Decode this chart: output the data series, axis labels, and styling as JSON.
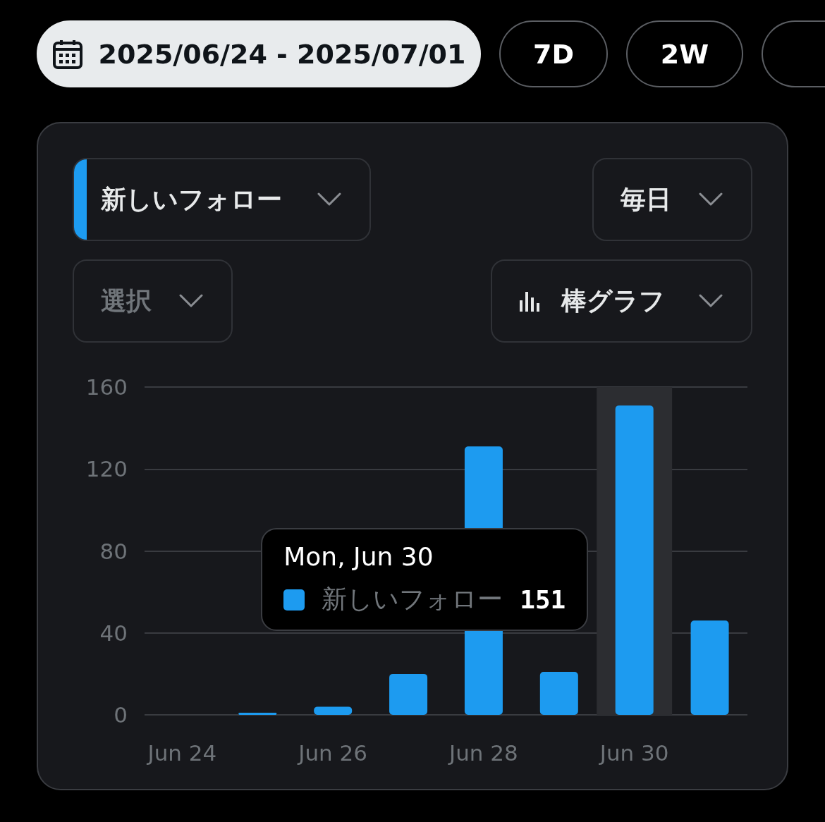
{
  "chart_data": {
    "type": "bar",
    "categories": [
      "Jun 24",
      null,
      "Jun 26",
      null,
      "Jun 28",
      null,
      "Jun 30",
      null
    ],
    "series": [
      {
        "name": "新しいフォロー",
        "color": "#1d9bf0",
        "values": [
          0,
          1,
          4,
          20,
          131,
          21,
          151,
          46
        ]
      }
    ],
    "ylim": [
      0,
      160
    ],
    "yticks": [
      0,
      40,
      80,
      120,
      160
    ],
    "grid": "y",
    "bands": [
      {
        "axis": "x",
        "from": "Jun 30",
        "to": "Jun 30",
        "color": "#2c2d31"
      }
    ],
    "annotations": [
      "2025/06/24 - 2025/07/01",
      "7D",
      "2W",
      "毎日",
      "選択",
      "棒グラフ",
      "Mon, Jun 30",
      "151"
    ]
  }
}
